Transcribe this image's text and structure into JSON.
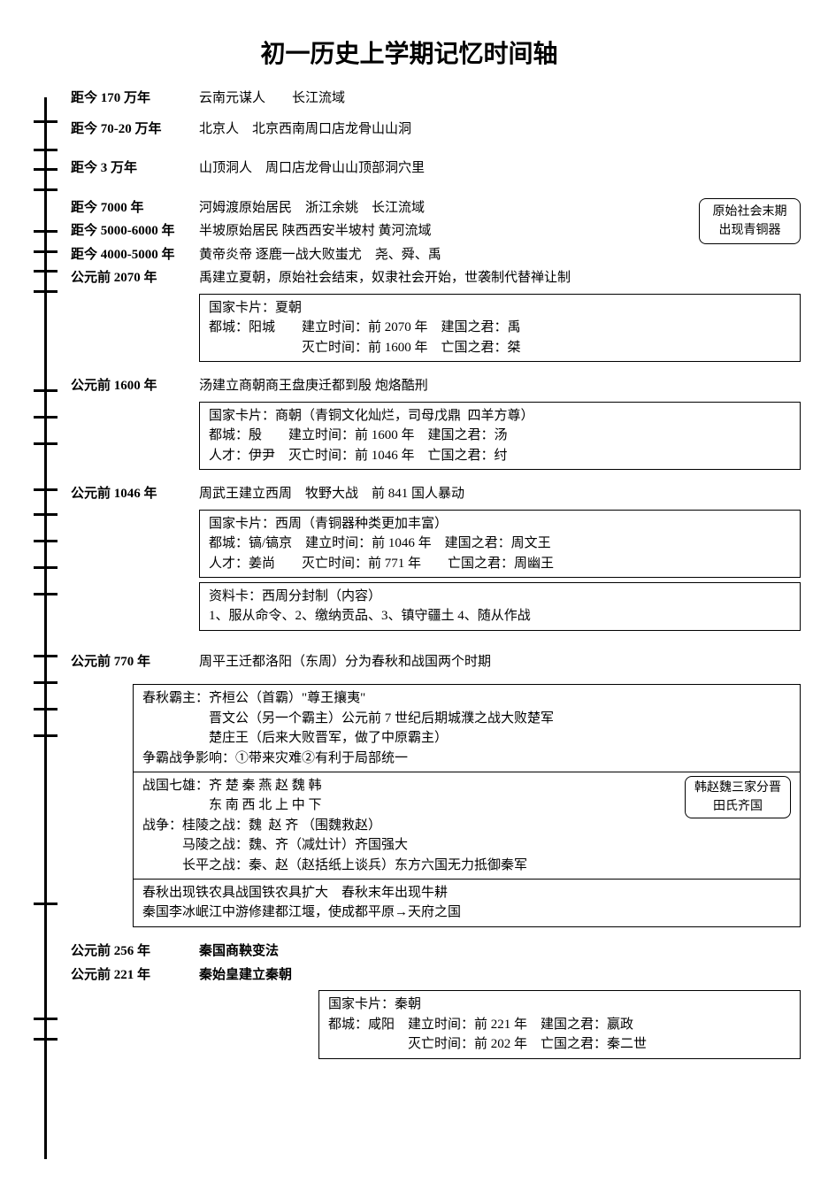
{
  "title": "初一历史上学期记忆时间轴",
  "colors": {
    "text": "#000000",
    "bg": "#ffffff",
    "line": "#000000"
  },
  "rows": [
    {
      "date": "距今 170 万年",
      "desc": "云南元谋人　　长江流域",
      "tick": 96
    },
    {
      "date": "距今 70-20 万年",
      "desc": "北京人　北京西南周口店龙骨山山洞",
      "tick": 128
    },
    {
      "date": "距今 3 万年",
      "desc": "山顶洞人　周口店龙骨山山顶部洞穴里",
      "tick": 173
    }
  ],
  "rows2": [
    {
      "date": "距今 7000 年",
      "desc": "河姆渡原始居民　浙江余姚　长江流域",
      "tick": 220
    },
    {
      "date": "距今 5000-6000 年",
      "desc": "半坡原始居民  陕西西安半坡村  黄河流域",
      "tick": 243
    },
    {
      "date": "距今 4000-5000 年",
      "desc": "黄帝炎帝  逐鹿一战大败蚩尤　尧、舜、禹",
      "tick": 265
    },
    {
      "date": "公元前 2070 年",
      "desc": "禹建立夏朝，原始社会结束，奴隶社会开始，世袭制代替禅让制",
      "tick": 288
    }
  ],
  "side_note_bronze": "原始社会末期\n出现青铜器",
  "card_xia": [
    "国家卡片：夏朝",
    "都城：阳城　　建立时间：前 2070 年　建国之君：禹",
    "　　　　　　　灭亡时间：前 1600 年　亡国之君：桀"
  ],
  "row_shang": {
    "date": "公元前 1600 年",
    "desc": "汤建立商朝商王盘庚迁都到殷  炮烙酷刑",
    "tick": 400
  },
  "card_shang": [
    "国家卡片：商朝（青铜文化灿烂，司母戊鼎  四羊方尊）",
    "都城：殷　　建立时间：前 1600 年　建国之君：汤",
    "人才：伊尹　灭亡时间：前 1046 年　亡国之君：纣"
  ],
  "row_xizhou": {
    "date": "公元前 1046 年",
    "desc": "周武王建立西周　牧野大战　前 841 国人暴动",
    "tick": 512
  },
  "card_xizhou": [
    "国家卡片：西周（青铜器种类更加丰富）",
    "都城：镐/镐京　建立时间：前 1046 年　建国之君：周文王",
    "人才：姜尚　　灭亡时间：前 771 年　　亡国之君：周幽王"
  ],
  "card_fenfeng": [
    "资料卡：西周分封制（内容）",
    "1、服从命令、2、缴纳贡品、3、镇守疆土 4、随从作战"
  ],
  "row_dongzhou": {
    "date": "公元前 770 年",
    "desc": "周平王迁都洛阳（东周）分为春秋和战国两个时期",
    "tick": 700
  },
  "card_chunqiu": [
    "春秋霸主：齐桓公（首霸）\"尊王攘夷\"",
    "　　　　　晋文公（另一个霸主）公元前 7 世纪后期城濮之战大败楚军",
    "　　　　　楚庄王（后来大败晋军，做了中原霸主）",
    "争霸战争影响：①带来灾难②有利于局部统一"
  ],
  "card_zhanguo_main": [
    "战国七雄：齐 楚 秦 燕 赵 魏 韩",
    "　　　　　东 南 西 北 上 中 下",
    "战争：桂陵之战：魏  赵 齐 （围魏救赵）",
    "　　　马陵之战：魏、齐（减灶计）齐国强大",
    "　　　长平之战：秦、赵（赵括纸上谈兵）东方六国无力抵御秦军"
  ],
  "zhanguo_note": "韩赵魏三家分晋\n田氏齐国",
  "card_zhanguo_extra": [
    "春秋出现铁农具战国铁农具扩大　春秋末年出现牛耕",
    "秦国李冰岷江中游修建都江堰，使成都平原→天府之国"
  ],
  "row_256": {
    "date": "公元前 256 年",
    "desc": "秦国商鞅变法",
    "tick": 1110
  },
  "row_221": {
    "date": "公元前 221 年",
    "desc": "秦始皇建立秦朝",
    "tick": 1133
  },
  "card_qin": [
    "国家卡片：秦朝",
    "都城：咸阳　建立时间：前 221 年　建国之君：嬴政",
    "　　　　　　灭亡时间：前 202 年　亡国之君：秦二世"
  ],
  "extra_ticks": [
    150,
    430,
    460,
    540,
    570,
    600,
    630,
    730,
    760,
    790,
    980
  ]
}
